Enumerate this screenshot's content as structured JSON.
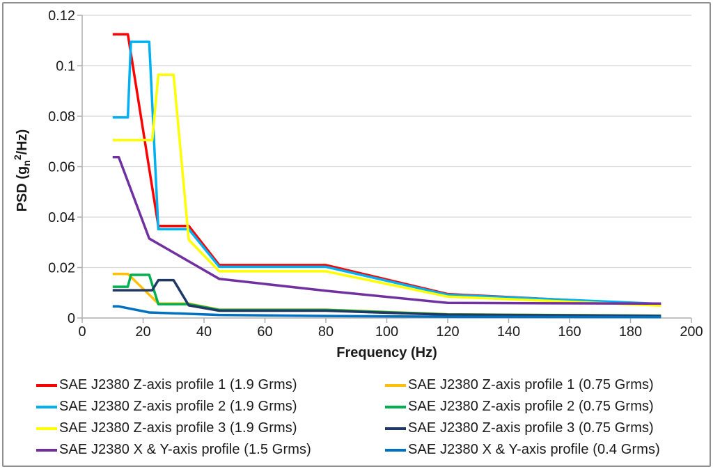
{
  "figure": {
    "border_color": "#8f8f8f",
    "background": "#ffffff",
    "grid_color": "#d8d8d8",
    "axis_color": "#aeaeae",
    "text_color": "#1a1a1a"
  },
  "axes": {
    "x": {
      "title": "Frequency (Hz)",
      "ticks": [
        0,
        20,
        40,
        60,
        80,
        100,
        120,
        140,
        160,
        180,
        200
      ]
    },
    "y": {
      "title_parts": {
        "pre": "PSD (g",
        "sub": "n",
        "sup": "2",
        "post": "/Hz)"
      },
      "ticks": [
        {
          "value": 0,
          "label": "0"
        },
        {
          "value": 0.02,
          "label": "0.02"
        },
        {
          "value": 0.04,
          "label": "0.04"
        },
        {
          "value": 0.06,
          "label": "0.06"
        },
        {
          "value": 0.08,
          "label": "0.08"
        },
        {
          "value": 0.1,
          "label": "0.1"
        },
        {
          "value": 0.12,
          "label": "0.12"
        }
      ]
    }
  },
  "chart_data": {
    "type": "line",
    "title": "",
    "xlabel": "Frequency (Hz)",
    "ylabel": "PSD (gn^2/Hz)",
    "xlim": [
      0,
      200
    ],
    "ylim": [
      0,
      0.12
    ],
    "grid": "horizontal",
    "legend_position": "bottom",
    "series": [
      {
        "id": "z1-high",
        "legend_label": "SAE J2380 Z-axis profile 1 (1.9 Grms)",
        "color": "#FF0000",
        "points": [
          [
            10,
            0.1125
          ],
          [
            15,
            0.1125
          ],
          [
            25,
            0.0365
          ],
          [
            35,
            0.0365
          ],
          [
            45,
            0.021
          ],
          [
            80,
            0.021
          ],
          [
            120,
            0.0095
          ],
          [
            190,
            0.0053
          ]
        ]
      },
      {
        "id": "z2-high",
        "legend_label": "SAE J2380 Z-axis profile 2 (1.9 Grms)",
        "color": "#00B0F0",
        "points": [
          [
            10,
            0.0795
          ],
          [
            15,
            0.0795
          ],
          [
            16,
            0.1095
          ],
          [
            22,
            0.1095
          ],
          [
            25,
            0.0352
          ],
          [
            35,
            0.0352
          ],
          [
            45,
            0.0203
          ],
          [
            80,
            0.0203
          ],
          [
            120,
            0.0092
          ],
          [
            190,
            0.0056
          ]
        ]
      },
      {
        "id": "z3-high",
        "legend_label": "SAE J2380 Z-axis profile 3 (1.9 Grms)",
        "color": "#FFFF00",
        "points": [
          [
            10,
            0.0705
          ],
          [
            23,
            0.0705
          ],
          [
            25,
            0.0965
          ],
          [
            30,
            0.0965
          ],
          [
            35,
            0.031
          ],
          [
            45,
            0.0185
          ],
          [
            80,
            0.0185
          ],
          [
            120,
            0.0085
          ],
          [
            190,
            0.0049
          ]
        ]
      },
      {
        "id": "xy-high",
        "legend_label": "SAE J2380 X & Y-axis profile (1.5 Grms)",
        "color": "#7030A0",
        "points": [
          [
            10,
            0.0638
          ],
          [
            12,
            0.0638
          ],
          [
            22,
            0.0315
          ],
          [
            45,
            0.0155
          ],
          [
            80,
            0.0108
          ],
          [
            120,
            0.006
          ],
          [
            190,
            0.0057
          ]
        ]
      },
      {
        "id": "z1-low",
        "legend_label": "SAE J2380 Z-axis profile 1 (0.75 Grms)",
        "color": "#FFC000",
        "points": [
          [
            10,
            0.0175
          ],
          [
            15,
            0.0175
          ],
          [
            25,
            0.0057
          ],
          [
            35,
            0.0057
          ],
          [
            45,
            0.0033
          ],
          [
            80,
            0.0033
          ],
          [
            120,
            0.0015
          ],
          [
            190,
            0.0009
          ]
        ]
      },
      {
        "id": "z2-low",
        "legend_label": "SAE J2380 Z-axis profile 2 (0.75 Grms)",
        "color": "#00B050",
        "points": [
          [
            10,
            0.0124
          ],
          [
            15,
            0.0124
          ],
          [
            16,
            0.0171
          ],
          [
            22,
            0.0171
          ],
          [
            25,
            0.0055
          ],
          [
            35,
            0.0055
          ],
          [
            45,
            0.0032
          ],
          [
            80,
            0.0032
          ],
          [
            120,
            0.0014
          ],
          [
            190,
            0.0009
          ]
        ]
      },
      {
        "id": "z3-low",
        "legend_label": "SAE J2380 Z-axis profile 3 (0.75 Grms)",
        "color": "#203864",
        "points": [
          [
            10,
            0.011
          ],
          [
            23,
            0.011
          ],
          [
            25,
            0.015
          ],
          [
            30,
            0.015
          ],
          [
            35,
            0.005
          ],
          [
            45,
            0.0029
          ],
          [
            80,
            0.0029
          ],
          [
            120,
            0.0013
          ],
          [
            190,
            0.0008
          ]
        ]
      },
      {
        "id": "xy-low",
        "legend_label": "SAE J2380 X & Y-axis profile (0.4 Grms)",
        "color": "#0070C0",
        "points": [
          [
            10,
            0.0046
          ],
          [
            12,
            0.0046
          ],
          [
            22,
            0.0022
          ],
          [
            45,
            0.0012
          ],
          [
            80,
            0.0008
          ],
          [
            120,
            0.0005
          ],
          [
            190,
            0.0004
          ]
        ]
      }
    ]
  }
}
